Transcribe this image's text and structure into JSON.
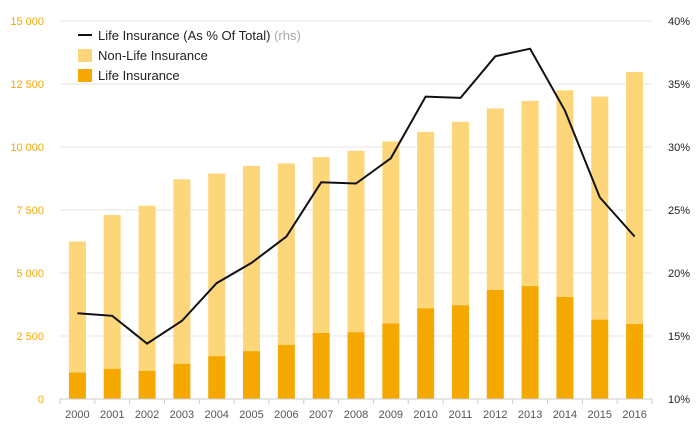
{
  "chart_data": {
    "type": "bar",
    "stacked": true,
    "categories": [
      "2000",
      "2001",
      "2002",
      "2003",
      "2004",
      "2005",
      "2006",
      "2007",
      "2008",
      "2009",
      "2010",
      "2011",
      "2012",
      "2013",
      "2014",
      "2015",
      "2016"
    ],
    "series": [
      {
        "name": "Life Insurance",
        "axis": "left",
        "color": "#f5a800",
        "values": [
          1050,
          1200,
          1120,
          1400,
          1700,
          1900,
          2150,
          2620,
          2650,
          3000,
          3600,
          3720,
          4330,
          4480,
          4050,
          3150,
          2980
        ]
      },
      {
        "name": "Non-Life Insurance",
        "axis": "left",
        "color": "#fdd67a",
        "values": [
          5200,
          6100,
          6550,
          7320,
          7250,
          7350,
          7200,
          6980,
          7200,
          7220,
          7000,
          7280,
          7200,
          7350,
          8200,
          8850,
          10000
        ]
      },
      {
        "name": "Life Insurance (As % Of Total)",
        "suffix": "(rhs)",
        "type": "line",
        "axis": "right",
        "color": "#111111",
        "values": [
          16.8,
          16.6,
          14.4,
          16.2,
          19.2,
          20.8,
          22.9,
          27.2,
          27.1,
          29.1,
          34.0,
          33.9,
          37.2,
          37.8,
          32.9,
          26.0,
          22.9
        ]
      }
    ],
    "yleft": {
      "ylim": [
        0,
        15000
      ],
      "ticks": [
        "0",
        "2 500",
        "5 000",
        "7 500",
        "10 000",
        "12 500",
        "15 000"
      ],
      "tick_values": [
        0,
        2500,
        5000,
        7500,
        10000,
        12500,
        15000
      ]
    },
    "yright": {
      "ylim": [
        10,
        40
      ],
      "ticks": [
        "10%",
        "15%",
        "20%",
        "25%",
        "30%",
        "35%",
        "40%"
      ],
      "tick_values": [
        10,
        15,
        20,
        25,
        30,
        35,
        40
      ]
    },
    "grid": true,
    "legend": "top-left"
  }
}
